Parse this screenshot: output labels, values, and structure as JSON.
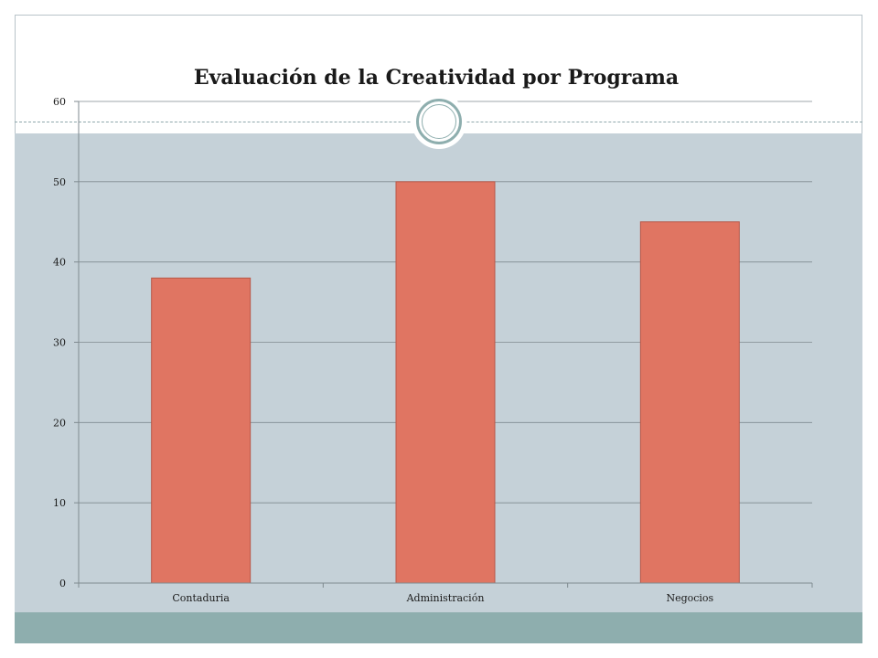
{
  "chart_data": {
    "type": "bar",
    "title": "Evaluación de la Creatividad por Programa",
    "xlabel": "",
    "ylabel": "",
    "categories": [
      "Contaduria",
      "Administración",
      "Negocios"
    ],
    "values": [
      38,
      50,
      45
    ],
    "ylim": [
      0,
      60
    ],
    "yticks": [
      0,
      10,
      20,
      30,
      40,
      50,
      60
    ],
    "grid": true,
    "legend": "none",
    "bar_color": "#e07562",
    "bar_edge_color": "#b85848"
  },
  "theme": {
    "band_color": "#c5d1d8",
    "accent_color": "#8eaeae"
  }
}
